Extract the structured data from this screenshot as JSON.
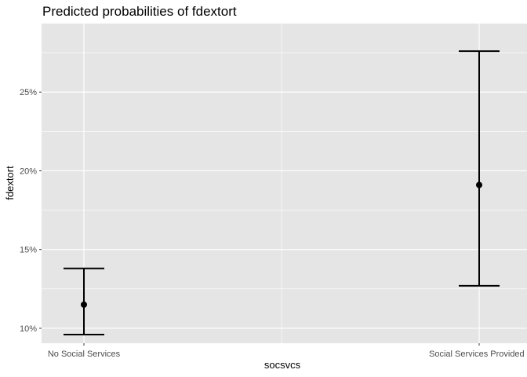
{
  "chart_data": {
    "type": "errorbar",
    "title": "Predicted probabilities of fdextort",
    "xlabel": "socsvcs",
    "ylabel": "fdextort",
    "categories": [
      "No Social Services",
      "Social Services Provided"
    ],
    "y_ticks": [
      0.1,
      0.15,
      0.2,
      0.25
    ],
    "y_tick_labels": [
      "10%",
      "15%",
      "20%",
      "25%"
    ],
    "ylim": [
      0.0905,
      0.2935
    ],
    "series": [
      {
        "estimate": [
          0.115,
          0.191
        ],
        "lower": [
          0.096,
          0.127
        ],
        "upper": [
          0.138,
          0.276
        ]
      }
    ],
    "grid": true,
    "panel_color": "#e5e5e5",
    "grid_color": "#ffffff",
    "mark_color": "#000000"
  }
}
